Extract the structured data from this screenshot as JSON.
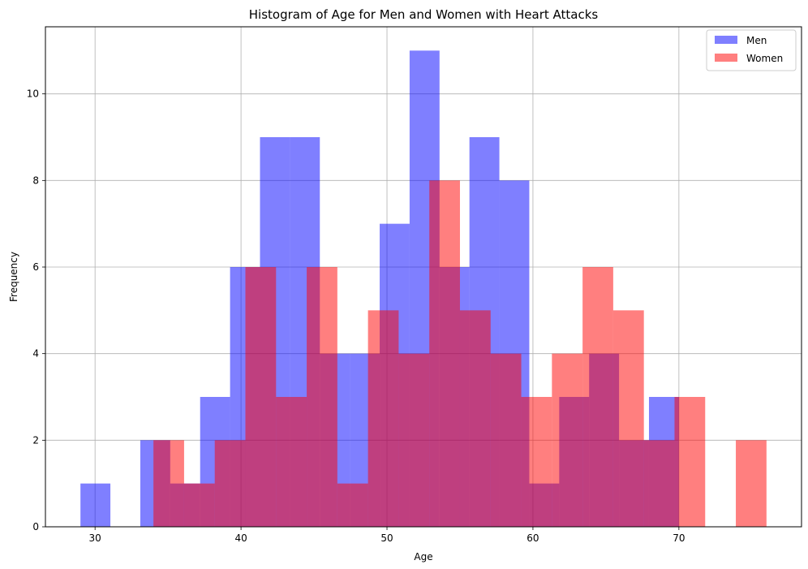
{
  "chart_data": {
    "type": "bar",
    "title": "Histogram of Age for Men and Women with Heart Attacks",
    "xlabel": "Age",
    "ylabel": "Frequency",
    "xlim": [
      26.6,
      78.4
    ],
    "ylim": [
      0,
      11.55
    ],
    "xticks": [
      30,
      40,
      50,
      60,
      70
    ],
    "yticks": [
      0,
      2,
      4,
      6,
      8,
      10
    ],
    "grid": true,
    "legend_position": "top-right",
    "series": [
      {
        "name": "Men",
        "color": "#0000ff",
        "opacity": 0.5,
        "bins": [
          {
            "x0": 29.0,
            "x1": 31.05,
            "count": 1
          },
          {
            "x0": 31.05,
            "x1": 33.1,
            "count": 0
          },
          {
            "x0": 33.1,
            "x1": 35.15,
            "count": 2
          },
          {
            "x0": 35.15,
            "x1": 37.2,
            "count": 1
          },
          {
            "x0": 37.2,
            "x1": 39.25,
            "count": 3
          },
          {
            "x0": 39.25,
            "x1": 41.3,
            "count": 6
          },
          {
            "x0": 41.3,
            "x1": 43.35,
            "count": 9
          },
          {
            "x0": 43.35,
            "x1": 45.4,
            "count": 9
          },
          {
            "x0": 45.4,
            "x1": 47.45,
            "count": 4
          },
          {
            "x0": 47.45,
            "x1": 49.5,
            "count": 4
          },
          {
            "x0": 49.5,
            "x1": 51.55,
            "count": 7
          },
          {
            "x0": 51.55,
            "x1": 53.6,
            "count": 11
          },
          {
            "x0": 53.6,
            "x1": 55.65,
            "count": 6
          },
          {
            "x0": 55.65,
            "x1": 57.7,
            "count": 9
          },
          {
            "x0": 57.7,
            "x1": 59.75,
            "count": 8
          },
          {
            "x0": 59.75,
            "x1": 61.8,
            "count": 1
          },
          {
            "x0": 61.8,
            "x1": 63.85,
            "count": 3
          },
          {
            "x0": 63.85,
            "x1": 65.9,
            "count": 4
          },
          {
            "x0": 65.9,
            "x1": 67.95,
            "count": 2
          },
          {
            "x0": 67.95,
            "x1": 70.0,
            "count": 3
          }
        ]
      },
      {
        "name": "Women",
        "color": "#ff0000",
        "opacity": 0.5,
        "bins": [
          {
            "x0": 34.0,
            "x1": 36.1,
            "count": 2
          },
          {
            "x0": 36.1,
            "x1": 38.2,
            "count": 1
          },
          {
            "x0": 38.2,
            "x1": 40.3,
            "count": 2
          },
          {
            "x0": 40.3,
            "x1": 42.4,
            "count": 6
          },
          {
            "x0": 42.4,
            "x1": 44.5,
            "count": 3
          },
          {
            "x0": 44.5,
            "x1": 46.6,
            "count": 6
          },
          {
            "x0": 46.6,
            "x1": 48.7,
            "count": 1
          },
          {
            "x0": 48.7,
            "x1": 50.8,
            "count": 5
          },
          {
            "x0": 50.8,
            "x1": 52.9,
            "count": 4
          },
          {
            "x0": 52.9,
            "x1": 55.0,
            "count": 8
          },
          {
            "x0": 55.0,
            "x1": 57.1,
            "count": 5
          },
          {
            "x0": 57.1,
            "x1": 59.2,
            "count": 4
          },
          {
            "x0": 59.2,
            "x1": 61.3,
            "count": 3
          },
          {
            "x0": 61.3,
            "x1": 63.4,
            "count": 4
          },
          {
            "x0": 63.4,
            "x1": 65.5,
            "count": 6
          },
          {
            "x0": 65.5,
            "x1": 67.6,
            "count": 5
          },
          {
            "x0": 67.6,
            "x1": 69.7,
            "count": 2
          },
          {
            "x0": 69.7,
            "x1": 71.8,
            "count": 3
          },
          {
            "x0": 71.8,
            "x1": 73.9,
            "count": 0
          },
          {
            "x0": 73.9,
            "x1": 76.0,
            "count": 2
          }
        ]
      }
    ]
  }
}
